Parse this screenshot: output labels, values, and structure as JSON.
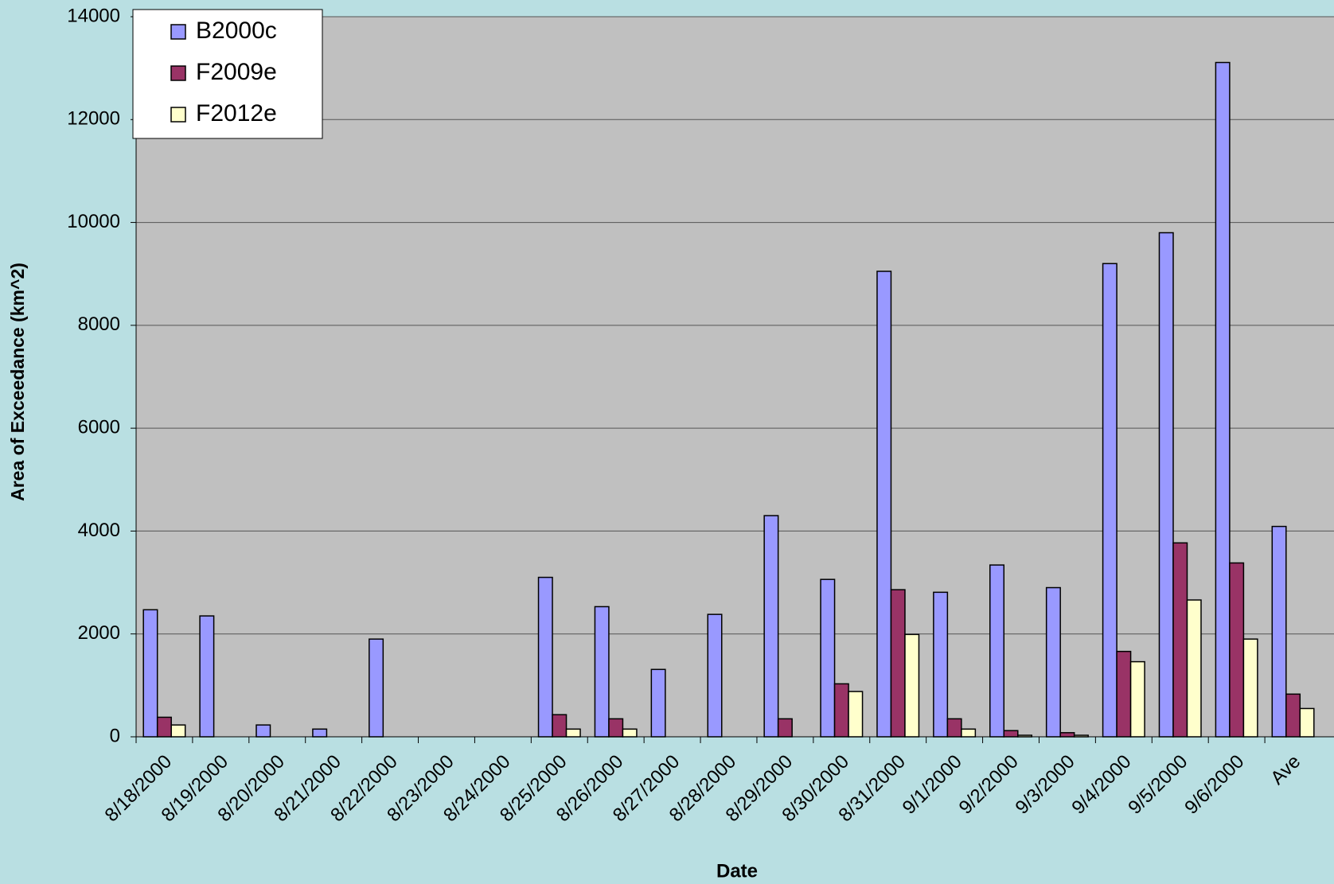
{
  "chart_data": {
    "type": "bar",
    "x_label": "Date",
    "y_label": "Area of Exceedance  (km^2)",
    "categories": [
      "8/18/2000",
      "8/19/2000",
      "8/20/2000",
      "8/21/2000",
      "8/22/2000",
      "8/23/2000",
      "8/24/2000",
      "8/25/2000",
      "8/26/2000",
      "8/27/2000",
      "8/28/2000",
      "8/29/2000",
      "8/30/2000",
      "8/31/2000",
      "9/1/2000",
      "9/2/2000",
      "9/3/2000",
      "9/4/2000",
      "9/5/2000",
      "9/6/2000",
      "Ave"
    ],
    "series": [
      {
        "name": "B2000c",
        "color": "#9999ff",
        "values": [
          2470,
          2350,
          230,
          150,
          1900,
          0,
          0,
          3100,
          2530,
          1310,
          2380,
          4300,
          3060,
          9050,
          2810,
          3340,
          2900,
          9200,
          9800,
          13110,
          4090
        ]
      },
      {
        "name": "F2009e",
        "color": "#993366",
        "values": [
          380,
          0,
          0,
          0,
          0,
          0,
          0,
          430,
          350,
          0,
          0,
          350,
          1030,
          2860,
          350,
          120,
          80,
          1660,
          3770,
          3380,
          830
        ]
      },
      {
        "name": "F2012e",
        "color": "#ffffcc",
        "values": [
          230,
          0,
          0,
          0,
          0,
          0,
          0,
          150,
          150,
          0,
          0,
          0,
          880,
          1990,
          150,
          30,
          30,
          1460,
          2660,
          1900,
          550
        ]
      }
    ],
    "ylim": [
      0,
      14000
    ],
    "yticks": [
      0,
      2000,
      4000,
      6000,
      8000,
      10000,
      12000,
      14000
    ],
    "grid": true,
    "legend": "top-left"
  }
}
